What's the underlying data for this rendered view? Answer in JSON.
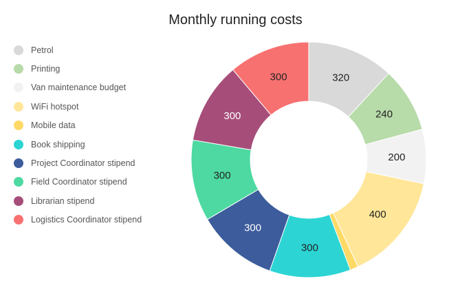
{
  "chart_data": {
    "type": "pie",
    "title": "Monthly running costs",
    "legend_position": "left",
    "categories": [
      "Petrol",
      "Printing",
      "Van maintenance budget",
      "WiFi hotspot",
      "Mobile data",
      "Book shipping",
      "Project Coordinator stipend",
      "Field Coordinator stipend",
      "Librarian stipend",
      "Logistics Coordinator stipend"
    ],
    "values": [
      320,
      240,
      200,
      400,
      30,
      300,
      300,
      300,
      300,
      300
    ],
    "data_labels": [
      "320",
      "240",
      "200",
      "400",
      "",
      "300",
      "300",
      "300",
      "300",
      "300"
    ],
    "colors": [
      "#d9d9d9",
      "#b7dba9",
      "#f2f2f2",
      "#ffe699",
      "#ffd966",
      "#2dd4d4",
      "#3c5c9c",
      "#4dd9a1",
      "#a64d79",
      "#f87171"
    ],
    "label_colors": [
      "#222222",
      "#222222",
      "#222222",
      "#222222",
      "#222222",
      "#222222",
      "#ffffff",
      "#222222",
      "#ffffff",
      "#222222"
    ]
  }
}
